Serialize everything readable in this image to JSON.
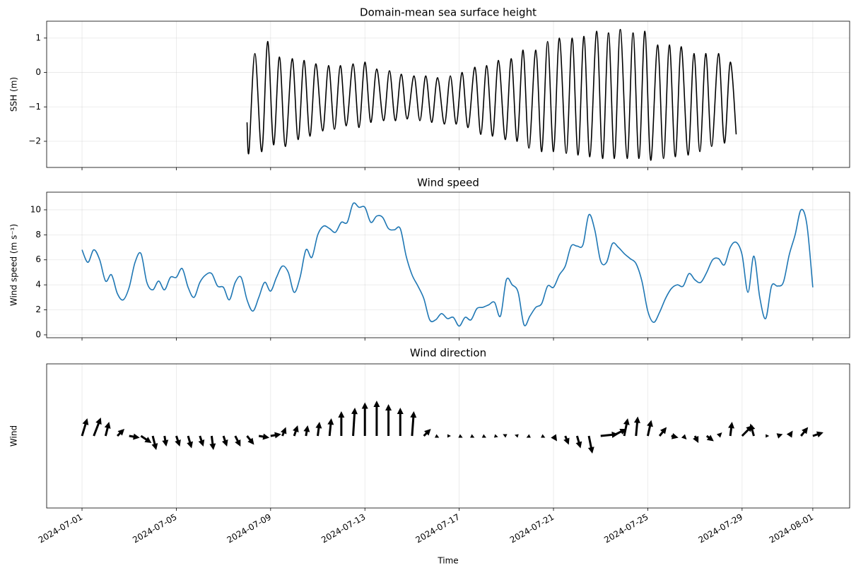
{
  "chart_data": [
    {
      "type": "line",
      "title": "Domain-mean sea surface height",
      "ylabel": "SSH (m)",
      "color": "#000000",
      "grid": true,
      "xlim": [
        "2024-06-29 12:00",
        "2024-08-02 13:30"
      ],
      "xticks": [
        "2024-07-01",
        "2024-07-05",
        "2024-07-09",
        "2024-07-13",
        "2024-07-17",
        "2024-07-21",
        "2024-07-25",
        "2024-07-29",
        "2024-08-01"
      ],
      "ylim": [
        -2.76,
        1.49
      ],
      "yticks": [
        {
          "value": -2,
          "label": "−2"
        },
        {
          "value": -1,
          "label": "−1"
        },
        0,
        1
      ],
      "x": [
        "2024-07-08 00:00",
        "2024-07-08 02:00",
        "2024-07-08 08:00",
        "2024-07-08 15:00",
        "2024-07-08 21:00",
        "2024-07-09 03:00",
        "2024-07-09 09:00",
        "2024-07-09 15:00",
        "2024-07-09 22:00",
        "2024-07-10 04:00",
        "2024-07-10 10:00",
        "2024-07-10 16:00",
        "2024-07-10 22:00",
        "2024-07-11 05:00",
        "2024-07-11 11:00",
        "2024-07-11 17:00",
        "2024-07-11 23:00",
        "2024-07-12 05:00",
        "2024-07-12 12:00",
        "2024-07-12 18:00",
        "2024-07-13 00:00",
        "2024-07-13 06:00",
        "2024-07-13 12:00",
        "2024-07-13 19:00",
        "2024-07-14 01:00",
        "2024-07-14 07:00",
        "2024-07-14 13:00",
        "2024-07-14 19:00",
        "2024-07-15 02:00",
        "2024-07-15 08:00",
        "2024-07-15 14:00",
        "2024-07-15 20:00",
        "2024-07-16 02:00",
        "2024-07-16 09:00",
        "2024-07-16 15:00",
        "2024-07-16 21:00",
        "2024-07-17 03:00",
        "2024-07-17 09:00",
        "2024-07-17 16:00",
        "2024-07-17 22:00",
        "2024-07-18 04:00",
        "2024-07-18 10:00",
        "2024-07-18 16:00",
        "2024-07-18 23:00",
        "2024-07-19 05:00",
        "2024-07-19 11:00",
        "2024-07-19 17:00",
        "2024-07-19 23:00",
        "2024-07-20 06:00",
        "2024-07-20 12:00",
        "2024-07-20 18:00",
        "2024-07-21 00:00",
        "2024-07-21 06:00",
        "2024-07-21 13:00",
        "2024-07-21 19:00",
        "2024-07-22 01:00",
        "2024-07-22 07:00",
        "2024-07-22 13:00",
        "2024-07-22 20:00",
        "2024-07-23 02:00",
        "2024-07-23 08:00",
        "2024-07-23 14:00",
        "2024-07-23 20:00",
        "2024-07-24 03:00",
        "2024-07-24 09:00",
        "2024-07-24 15:00",
        "2024-07-24 21:00",
        "2024-07-25 03:00",
        "2024-07-25 10:00",
        "2024-07-25 16:00",
        "2024-07-25 22:00",
        "2024-07-26 04:00",
        "2024-07-26 10:00",
        "2024-07-26 17:00",
        "2024-07-26 23:00",
        "2024-07-27 05:00",
        "2024-07-27 11:00",
        "2024-07-27 17:00",
        "2024-07-28 00:00",
        "2024-07-28 06:00",
        "2024-07-28 12:00",
        "2024-07-28 18:00"
      ],
      "values": [
        -1.45,
        -2.3,
        0.55,
        -2.3,
        0.9,
        -2.1,
        0.45,
        -2.15,
        0.4,
        -1.95,
        0.35,
        -1.85,
        0.25,
        -1.7,
        0.2,
        -1.65,
        0.2,
        -1.55,
        0.25,
        -1.6,
        0.3,
        -1.45,
        0.1,
        -1.4,
        0.05,
        -1.4,
        -0.05,
        -1.35,
        -0.1,
        -1.4,
        -0.1,
        -1.45,
        -0.15,
        -1.5,
        -0.1,
        -1.5,
        0.0,
        -1.6,
        0.15,
        -1.8,
        0.2,
        -1.85,
        0.35,
        -1.95,
        0.4,
        -2.0,
        0.65,
        -2.2,
        0.65,
        -2.3,
        0.9,
        -2.3,
        1.0,
        -2.35,
        1.0,
        -2.4,
        1.05,
        -2.45,
        1.2,
        -2.5,
        1.15,
        -2.5,
        1.25,
        -2.5,
        1.15,
        -2.5,
        1.2,
        -2.55,
        0.8,
        -2.5,
        0.8,
        -2.45,
        0.75,
        -2.4,
        0.55,
        -2.3,
        0.55,
        -2.15,
        0.55,
        -2.05,
        0.3,
        -1.8
      ]
    },
    {
      "type": "line",
      "title": "Wind speed",
      "ylabel": "Wind speed (m s⁻¹)",
      "color": "#1f77b4",
      "grid": true,
      "xlim": [
        "2024-06-29 12:00",
        "2024-08-02 13:30"
      ],
      "xticks": [
        "2024-07-01",
        "2024-07-05",
        "2024-07-09",
        "2024-07-13",
        "2024-07-17",
        "2024-07-21",
        "2024-07-25",
        "2024-07-29",
        "2024-08-01"
      ],
      "ylim": [
        -0.23,
        11.41
      ],
      "yticks": [
        0,
        2,
        4,
        6,
        8,
        10
      ],
      "x": [
        "2024-07-01 00:00",
        "2024-07-01 06:00",
        "2024-07-01 12:00",
        "2024-07-01 18:00",
        "2024-07-02 00:00",
        "2024-07-02 06:00",
        "2024-07-02 12:00",
        "2024-07-02 18:00",
        "2024-07-03 00:00",
        "2024-07-03 06:00",
        "2024-07-03 12:00",
        "2024-07-03 18:00",
        "2024-07-04 00:00",
        "2024-07-04 06:00",
        "2024-07-04 12:00",
        "2024-07-04 18:00",
        "2024-07-05 00:00",
        "2024-07-05 06:00",
        "2024-07-05 12:00",
        "2024-07-05 18:00",
        "2024-07-06 00:00",
        "2024-07-06 06:00",
        "2024-07-06 12:00",
        "2024-07-06 18:00",
        "2024-07-07 00:00",
        "2024-07-07 06:00",
        "2024-07-07 12:00",
        "2024-07-07 18:00",
        "2024-07-08 00:00",
        "2024-07-08 06:00",
        "2024-07-08 12:00",
        "2024-07-08 18:00",
        "2024-07-09 00:00",
        "2024-07-09 06:00",
        "2024-07-09 12:00",
        "2024-07-09 18:00",
        "2024-07-10 00:00",
        "2024-07-10 06:00",
        "2024-07-10 12:00",
        "2024-07-10 18:00",
        "2024-07-11 00:00",
        "2024-07-11 06:00",
        "2024-07-11 12:00",
        "2024-07-11 18:00",
        "2024-07-12 00:00",
        "2024-07-12 06:00",
        "2024-07-12 12:00",
        "2024-07-12 18:00",
        "2024-07-13 00:00",
        "2024-07-13 06:00",
        "2024-07-13 12:00",
        "2024-07-13 18:00",
        "2024-07-14 00:00",
        "2024-07-14 06:00",
        "2024-07-14 12:00",
        "2024-07-14 18:00",
        "2024-07-15 00:00",
        "2024-07-15 06:00",
        "2024-07-15 12:00",
        "2024-07-15 18:00",
        "2024-07-16 00:00",
        "2024-07-16 06:00",
        "2024-07-16 12:00",
        "2024-07-16 18:00",
        "2024-07-17 00:00",
        "2024-07-17 06:00",
        "2024-07-17 12:00",
        "2024-07-17 18:00",
        "2024-07-18 00:00",
        "2024-07-18 06:00",
        "2024-07-18 12:00",
        "2024-07-18 18:00",
        "2024-07-19 00:00",
        "2024-07-19 06:00",
        "2024-07-19 12:00",
        "2024-07-19 18:00",
        "2024-07-20 00:00",
        "2024-07-20 06:00",
        "2024-07-20 12:00",
        "2024-07-20 18:00",
        "2024-07-21 00:00",
        "2024-07-21 06:00",
        "2024-07-21 12:00",
        "2024-07-21 18:00",
        "2024-07-22 00:00",
        "2024-07-22 06:00",
        "2024-07-22 12:00",
        "2024-07-22 18:00",
        "2024-07-23 00:00",
        "2024-07-23 06:00",
        "2024-07-23 12:00",
        "2024-07-23 18:00",
        "2024-07-24 00:00",
        "2024-07-24 06:00",
        "2024-07-24 12:00",
        "2024-07-24 18:00",
        "2024-07-25 00:00",
        "2024-07-25 06:00",
        "2024-07-25 12:00",
        "2024-07-25 18:00",
        "2024-07-26 00:00",
        "2024-07-26 06:00",
        "2024-07-26 12:00",
        "2024-07-26 18:00",
        "2024-07-27 00:00",
        "2024-07-27 06:00",
        "2024-07-27 12:00",
        "2024-07-27 18:00",
        "2024-07-28 00:00",
        "2024-07-28 06:00",
        "2024-07-28 12:00",
        "2024-07-28 18:00",
        "2024-07-29 00:00",
        "2024-07-29 06:00",
        "2024-07-29 12:00",
        "2024-07-29 18:00",
        "2024-07-30 00:00",
        "2024-07-30 06:00",
        "2024-07-30 12:00",
        "2024-07-30 18:00",
        "2024-07-31 00:00",
        "2024-07-31 06:00",
        "2024-07-31 12:00",
        "2024-07-31 18:00",
        "2024-08-01 00:00"
      ],
      "values": [
        6.8,
        5.8,
        6.8,
        6.0,
        4.3,
        4.8,
        3.3,
        2.8,
        3.8,
        5.8,
        6.5,
        4.2,
        3.6,
        4.3,
        3.6,
        4.6,
        4.6,
        5.3,
        3.8,
        3.0,
        4.2,
        4.8,
        4.9,
        3.9,
        3.8,
        2.8,
        4.2,
        4.6,
        2.8,
        1.9,
        3.0,
        4.2,
        3.5,
        4.6,
        5.5,
        5.0,
        3.4,
        4.6,
        6.8,
        6.2,
        8.0,
        8.7,
        8.5,
        8.2,
        9.0,
        9.0,
        10.5,
        10.2,
        10.2,
        9.0,
        9.5,
        9.4,
        8.5,
        8.4,
        8.5,
        6.3,
        4.8,
        3.9,
        2.9,
        1.2,
        1.2,
        1.7,
        1.3,
        1.4,
        0.7,
        1.4,
        1.2,
        2.1,
        2.2,
        2.4,
        2.6,
        1.5,
        4.4,
        4.0,
        3.4,
        0.8,
        1.5,
        2.2,
        2.5,
        3.9,
        3.8,
        4.8,
        5.5,
        7.1,
        7.1,
        7.2,
        9.6,
        8.4,
        5.9,
        5.8,
        7.3,
        7.0,
        6.5,
        6.1,
        5.7,
        4.3,
        1.9,
        1.0,
        1.8,
        2.9,
        3.7,
        4.0,
        3.9,
        4.9,
        4.4,
        4.2,
        5.0,
        6.0,
        6.1,
        5.6,
        7.0,
        7.4,
        6.4,
        3.4,
        6.3,
        3.0,
        1.3,
        3.9,
        3.9,
        4.2,
        6.4,
        8.0,
        10.0,
        8.8,
        3.8
      ]
    },
    {
      "type": "quiver",
      "title": "Wind direction",
      "ylabel": "Wind",
      "xlabel": "Time",
      "color": "#000000",
      "grid": true,
      "xlim": [
        "2024-06-29 12:00",
        "2024-08-02 13:30"
      ],
      "xticks": [
        "2024-07-01",
        "2024-07-05",
        "2024-07-09",
        "2024-07-13",
        "2024-07-17",
        "2024-07-21",
        "2024-07-25",
        "2024-07-29",
        "2024-08-01"
      ],
      "x": [
        "2024-07-01 00:00",
        "2024-07-01 12:00",
        "2024-07-02 00:00",
        "2024-07-02 12:00",
        "2024-07-03 00:00",
        "2024-07-03 12:00",
        "2024-07-04 00:00",
        "2024-07-04 12:00",
        "2024-07-05 00:00",
        "2024-07-05 12:00",
        "2024-07-06 00:00",
        "2024-07-06 12:00",
        "2024-07-07 00:00",
        "2024-07-07 12:00",
        "2024-07-08 00:00",
        "2024-07-08 12:00",
        "2024-07-09 00:00",
        "2024-07-09 12:00",
        "2024-07-10 00:00",
        "2024-07-10 12:00",
        "2024-07-11 00:00",
        "2024-07-11 12:00",
        "2024-07-12 00:00",
        "2024-07-12 12:00",
        "2024-07-13 00:00",
        "2024-07-13 12:00",
        "2024-07-14 00:00",
        "2024-07-14 12:00",
        "2024-07-15 00:00",
        "2024-07-15 12:00",
        "2024-07-16 00:00",
        "2024-07-16 12:00",
        "2024-07-17 00:00",
        "2024-07-17 12:00",
        "2024-07-18 00:00",
        "2024-07-18 12:00",
        "2024-07-19 00:00",
        "2024-07-19 12:00",
        "2024-07-20 00:00",
        "2024-07-20 12:00",
        "2024-07-21 00:00",
        "2024-07-21 12:00",
        "2024-07-22 00:00",
        "2024-07-22 12:00",
        "2024-07-23 00:00",
        "2024-07-23 12:00",
        "2024-07-24 00:00",
        "2024-07-24 12:00",
        "2024-07-25 00:00",
        "2024-07-25 12:00",
        "2024-07-26 00:00",
        "2024-07-26 12:00",
        "2024-07-27 00:00",
        "2024-07-27 12:00",
        "2024-07-28 00:00",
        "2024-07-28 12:00",
        "2024-07-29 00:00",
        "2024-07-29 12:00",
        "2024-07-30 00:00",
        "2024-07-30 12:00",
        "2024-07-31 00:00",
        "2024-07-31 12:00",
        "2024-08-01 00:00"
      ],
      "u": [
        1.5,
        2,
        1,
        2,
        3,
        3,
        1,
        0.5,
        1,
        1,
        1,
        0.5,
        1,
        1.5,
        2,
        3,
        3,
        1,
        1,
        0.5,
        0.5,
        0.5,
        0,
        0.5,
        0,
        0,
        0,
        0,
        0.5,
        2,
        1,
        1,
        1,
        1,
        1,
        1,
        -1,
        -1,
        -1,
        1,
        1,
        1,
        1,
        1,
        5,
        4,
        1,
        0.5,
        1,
        2,
        2,
        1,
        1,
        2,
        1,
        0.5,
        3,
        -1,
        1,
        1.5,
        1,
        2,
        3
      ],
      "v": [
        5.0,
        5.2,
        4,
        2,
        -0.5,
        -2,
        -4,
        -3,
        -3,
        -3.5,
        -3,
        -4,
        -3,
        -3,
        -2.5,
        -0.5,
        0.5,
        2.5,
        3,
        3,
        4,
        5,
        7,
        8,
        9.5,
        10,
        9,
        8,
        7,
        2,
        -0.5,
        0,
        -0.5,
        -0.5,
        -0.5,
        -0.3,
        0.5,
        0.3,
        -0.5,
        -0.5,
        -1.5,
        -2.5,
        -3.5,
        -5,
        0.5,
        2,
        5,
        5.5,
        4.5,
        2.5,
        -0.5,
        -1,
        -2,
        -1.5,
        1,
        4,
        3,
        3.5,
        0,
        0.5,
        1.5,
        2.5,
        1
      ]
    }
  ]
}
